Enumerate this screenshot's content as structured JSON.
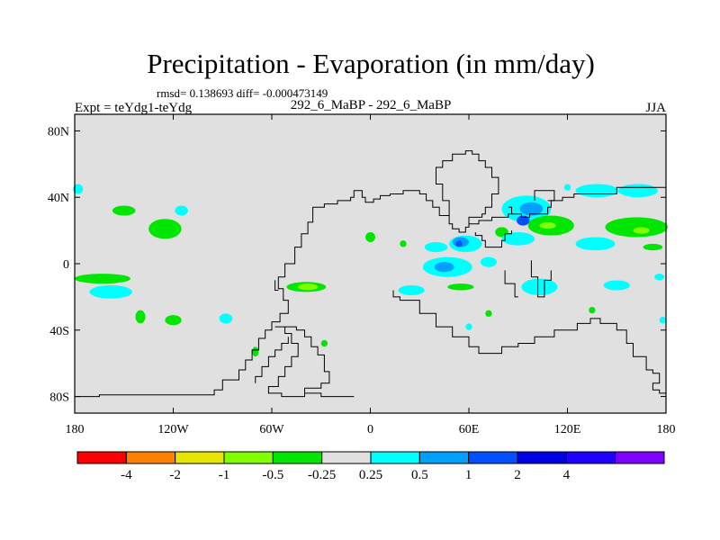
{
  "chart_data": {
    "type": "heatmap",
    "title": "Precipitation - Evaporation (in mm/day)",
    "stats": "rmsd= 0.138693 diff= -0.000473149",
    "left_label": "Expt = teYdg1-teYdg",
    "center_label": "292_6_MaBP - 292_6_MaBP",
    "right_label": "JJA",
    "x_ticks": [
      {
        "v": -180,
        "label": "180"
      },
      {
        "v": -120,
        "label": "120W"
      },
      {
        "v": -60,
        "label": "60W"
      },
      {
        "v": 0,
        "label": "0"
      },
      {
        "v": 60,
        "label": "60E"
      },
      {
        "v": 120,
        "label": "120E"
      },
      {
        "v": 180,
        "label": "180"
      }
    ],
    "y_ticks": [
      {
        "v": 80,
        "label": "80N"
      },
      {
        "v": 40,
        "label": "40N"
      },
      {
        "v": 0,
        "label": "0"
      },
      {
        "v": -40,
        "label": "40S"
      },
      {
        "v": -80,
        "label": "80S"
      }
    ],
    "xlim": [
      -180,
      180
    ],
    "ylim": [
      -90,
      90
    ],
    "colorbar": {
      "colors": [
        "#ff0000",
        "#ff8000",
        "#e6e600",
        "#80ff00",
        "#00e600",
        "#e0e0e0",
        "#00ffff",
        "#00a0ff",
        "#0050ff",
        "#0000e6",
        "#2000ff",
        "#8000ff"
      ],
      "labels": [
        "-4",
        "-2",
        "-1",
        "-0.5",
        "-0.25",
        "0.25",
        "0.5",
        "1",
        "2",
        "4"
      ]
    },
    "neutral_color": "#e0e0e0",
    "blobs": [
      {
        "lon": -178,
        "lat": 45,
        "rlon": 3,
        "rlat": 3,
        "color": "#00ffff"
      },
      {
        "lon": -150,
        "lat": 32,
        "rlon": 7,
        "rlat": 3,
        "color": "#00e600"
      },
      {
        "lon": -115,
        "lat": 32,
        "rlon": 4,
        "rlat": 3,
        "color": "#00ffff"
      },
      {
        "lon": -125,
        "lat": 21,
        "rlon": 10,
        "rlat": 6,
        "color": "#00e600"
      },
      {
        "lon": -163,
        "lat": -9,
        "rlon": 17,
        "rlat": 3,
        "color": "#00e600"
      },
      {
        "lon": -158,
        "lat": -17,
        "rlon": 13,
        "rlat": 4,
        "color": "#00ffff"
      },
      {
        "lon": -140,
        "lat": -32,
        "rlon": 3,
        "rlat": 4,
        "color": "#00e600"
      },
      {
        "lon": -120,
        "lat": -34,
        "rlon": 5,
        "rlat": 3,
        "color": "#00e600"
      },
      {
        "lon": -88,
        "lat": -33,
        "rlon": 4,
        "rlat": 3,
        "color": "#00ffff"
      },
      {
        "lon": -39,
        "lat": -14,
        "rlon": 12,
        "rlat": 3,
        "color": "#00e600"
      },
      {
        "lon": -38,
        "lat": -14,
        "rlon": 6,
        "rlat": 2,
        "color": "#80ff00"
      },
      {
        "lon": -70,
        "lat": -53,
        "rlon": 2,
        "rlat": 3,
        "color": "#00e600"
      },
      {
        "lon": -28,
        "lat": -48,
        "rlon": 2,
        "rlat": 2,
        "color": "#00e600"
      },
      {
        "lon": 0,
        "lat": 16,
        "rlon": 3,
        "rlat": 3,
        "color": "#00e600"
      },
      {
        "lon": 20,
        "lat": 12,
        "rlon": 2,
        "rlat": 2,
        "color": "#00e600"
      },
      {
        "lon": 40,
        "lat": 10,
        "rlon": 7,
        "rlat": 3,
        "color": "#00ffff"
      },
      {
        "lon": 58,
        "lat": 12,
        "rlon": 10,
        "rlat": 5,
        "color": "#00ffff"
      },
      {
        "lon": 55,
        "lat": 13,
        "rlon": 5,
        "rlat": 3,
        "color": "#00a0ff"
      },
      {
        "lon": 54,
        "lat": 12,
        "rlon": 2,
        "rlat": 2,
        "color": "#0050ff"
      },
      {
        "lon": 47,
        "lat": -2,
        "rlon": 15,
        "rlat": 6,
        "color": "#00ffff"
      },
      {
        "lon": 45,
        "lat": -2,
        "rlon": 6,
        "rlat": 3,
        "color": "#00a0ff"
      },
      {
        "lon": 25,
        "lat": -16,
        "rlon": 8,
        "rlat": 3,
        "color": "#00ffff"
      },
      {
        "lon": 55,
        "lat": -14,
        "rlon": 8,
        "rlat": 2,
        "color": "#00e600"
      },
      {
        "lon": 72,
        "lat": 1,
        "rlon": 5,
        "rlat": 3,
        "color": "#00ffff"
      },
      {
        "lon": 80,
        "lat": 19,
        "rlon": 4,
        "rlat": 3,
        "color": "#00e600"
      },
      {
        "lon": 95,
        "lat": 33,
        "rlon": 15,
        "rlat": 8,
        "color": "#00ffff"
      },
      {
        "lon": 98,
        "lat": 33,
        "rlon": 7,
        "rlat": 4,
        "color": "#00a0ff"
      },
      {
        "lon": 93,
        "lat": 26,
        "rlon": 4,
        "rlat": 3,
        "color": "#0050ff"
      },
      {
        "lon": 110,
        "lat": 23,
        "rlon": 14,
        "rlat": 6,
        "color": "#00e600"
      },
      {
        "lon": 108,
        "lat": 23,
        "rlon": 5,
        "rlat": 2,
        "color": "#80ff00"
      },
      {
        "lon": 90,
        "lat": 15,
        "rlon": 10,
        "rlat": 4,
        "color": "#00ffff"
      },
      {
        "lon": 137,
        "lat": 12,
        "rlon": 12,
        "rlat": 4,
        "color": "#00ffff"
      },
      {
        "lon": 138,
        "lat": 44,
        "rlon": 13,
        "rlat": 4,
        "color": "#00ffff"
      },
      {
        "lon": 163,
        "lat": 44,
        "rlon": 12,
        "rlat": 4,
        "color": "#00ffff"
      },
      {
        "lon": 120,
        "lat": 46,
        "rlon": 2,
        "rlat": 2,
        "color": "#00ffff"
      },
      {
        "lon": 162,
        "lat": 22,
        "rlon": 19,
        "rlat": 6,
        "color": "#00e600"
      },
      {
        "lon": 165,
        "lat": 20,
        "rlon": 5,
        "rlat": 2,
        "color": "#80ff00"
      },
      {
        "lon": 172,
        "lat": 10,
        "rlon": 6,
        "rlat": 2,
        "color": "#00e600"
      },
      {
        "lon": 103,
        "lat": -14,
        "rlon": 11,
        "rlat": 5,
        "color": "#00ffff"
      },
      {
        "lon": 150,
        "lat": -13,
        "rlon": 8,
        "rlat": 3,
        "color": "#00ffff"
      },
      {
        "lon": 176,
        "lat": -8,
        "rlon": 3,
        "rlat": 2,
        "color": "#00ffff"
      },
      {
        "lon": 135,
        "lat": -28,
        "rlon": 2,
        "rlat": 2,
        "color": "#00e600"
      },
      {
        "lon": 178,
        "lat": -34,
        "rlon": 2,
        "rlat": 2,
        "color": "#00ffff"
      },
      {
        "lon": 60,
        "lat": -38,
        "rlon": 2,
        "rlat": 2,
        "color": "#00ffff"
      },
      {
        "lon": 72,
        "lat": -30,
        "rlon": 2,
        "rlat": 2,
        "color": "#00e600"
      }
    ],
    "coastlines": [
      [
        [
          -180,
          -80
        ],
        [
          -165,
          -80
        ],
        [
          -165,
          -79
        ],
        [
          -95,
          -79
        ],
        [
          -95,
          -76
        ],
        [
          -90,
          -76
        ],
        [
          -90,
          -70
        ],
        [
          -80,
          -70
        ],
        [
          -80,
          -64
        ],
        [
          -76,
          -64
        ],
        [
          -76,
          -58
        ],
        [
          -72,
          -58
        ],
        [
          -72,
          -52
        ],
        [
          -68,
          -52
        ],
        [
          -68,
          -45
        ],
        [
          -64,
          -45
        ],
        [
          -64,
          -40
        ],
        [
          -60,
          -40
        ],
        [
          -60,
          -35
        ],
        [
          -55,
          -35
        ],
        [
          -55,
          -30
        ],
        [
          -50,
          -30
        ],
        [
          -50,
          -22
        ],
        [
          -53,
          -22
        ],
        [
          -53,
          -15
        ],
        [
          -56,
          -15
        ],
        [
          -56,
          -8
        ],
        [
          -52,
          -8
        ],
        [
          -52,
          0
        ],
        [
          -46,
          0
        ],
        [
          -46,
          10
        ],
        [
          -42,
          10
        ],
        [
          -42,
          18
        ],
        [
          -38,
          18
        ],
        [
          -38,
          25
        ],
        [
          -35,
          25
        ],
        [
          -35,
          34
        ],
        [
          -28,
          34
        ],
        [
          -28,
          36
        ],
        [
          -20,
          36
        ],
        [
          -20,
          38
        ],
        [
          -12,
          38
        ],
        [
          -12,
          40
        ],
        [
          -10,
          40
        ],
        [
          -10,
          44
        ],
        [
          -5,
          44
        ],
        [
          -5,
          40
        ],
        [
          -3,
          40
        ],
        [
          -3,
          37
        ],
        [
          2,
          37
        ],
        [
          2,
          39
        ],
        [
          6,
          39
        ],
        [
          6,
          41
        ],
        [
          12,
          41
        ],
        [
          12,
          42
        ],
        [
          20,
          42
        ],
        [
          20,
          44
        ],
        [
          30,
          44
        ],
        [
          30,
          42
        ],
        [
          34,
          42
        ],
        [
          34,
          38
        ],
        [
          38,
          38
        ],
        [
          38,
          34
        ],
        [
          42,
          34
        ],
        [
          42,
          29
        ],
        [
          48,
          29
        ],
        [
          48,
          24
        ],
        [
          50,
          24
        ],
        [
          50,
          21
        ],
        [
          54,
          21
        ],
        [
          54,
          19
        ],
        [
          58,
          19
        ],
        [
          58,
          22
        ],
        [
          60,
          22
        ],
        [
          60,
          24
        ],
        [
          66,
          24
        ],
        [
          66,
          26
        ],
        [
          74,
          26
        ],
        [
          74,
          28
        ],
        [
          84,
          28
        ],
        [
          84,
          30
        ],
        [
          92,
          30
        ],
        [
          92,
          28
        ],
        [
          97,
          28
        ],
        [
          97,
          30
        ],
        [
          108,
          30
        ],
        [
          108,
          34
        ],
        [
          110,
          34
        ],
        [
          110,
          38
        ],
        [
          117,
          38
        ],
        [
          117,
          40
        ],
        [
          124,
          40
        ],
        [
          124,
          42
        ],
        [
          150,
          42
        ],
        [
          150,
          46
        ],
        [
          180,
          46
        ]
      ],
      [
        [
          -180,
          -80
        ],
        [
          -180,
          -83
        ]
      ],
      [
        [
          48,
          29
        ],
        [
          48,
          38
        ],
        [
          44,
          38
        ],
        [
          44,
          48
        ],
        [
          40,
          48
        ],
        [
          40,
          58
        ],
        [
          44,
          58
        ],
        [
          44,
          62
        ],
        [
          50,
          62
        ],
        [
          50,
          66
        ],
        [
          58,
          66
        ],
        [
          58,
          68
        ],
        [
          62,
          68
        ],
        [
          62,
          66
        ],
        [
          66,
          66
        ],
        [
          66,
          62
        ],
        [
          70,
          62
        ],
        [
          70,
          58
        ],
        [
          74,
          58
        ],
        [
          74,
          52
        ],
        [
          78,
          52
        ],
        [
          78,
          42
        ],
        [
          74,
          42
        ],
        [
          74,
          34
        ],
        [
          70,
          34
        ],
        [
          70,
          30
        ],
        [
          68,
          30
        ],
        [
          68,
          28
        ],
        [
          60,
          28
        ],
        [
          60,
          24
        ]
      ],
      [
        [
          -58,
          -38
        ],
        [
          -52,
          -38
        ],
        [
          -52,
          -42
        ],
        [
          -48,
          -42
        ],
        [
          -48,
          -48
        ],
        [
          -44,
          -48
        ],
        [
          -44,
          -56
        ],
        [
          -48,
          -56
        ],
        [
          -48,
          -62
        ],
        [
          -52,
          -62
        ],
        [
          -52,
          -68
        ],
        [
          -56,
          -68
        ],
        [
          -56,
          -74
        ],
        [
          -62,
          -74
        ],
        [
          -62,
          -78
        ],
        [
          -54,
          -78
        ],
        [
          -54,
          -80
        ],
        [
          -40,
          -80
        ],
        [
          -40,
          -75
        ],
        [
          -30,
          -75
        ],
        [
          -30,
          -72
        ],
        [
          -25,
          -72
        ],
        [
          -25,
          -65
        ],
        [
          -28,
          -65
        ],
        [
          -28,
          -55
        ],
        [
          -32,
          -55
        ],
        [
          -32,
          -50
        ],
        [
          -36,
          -50
        ],
        [
          -36,
          -44
        ],
        [
          -40,
          -44
        ],
        [
          -40,
          -40
        ],
        [
          -45,
          -40
        ],
        [
          -45,
          -38
        ],
        [
          -52,
          -38
        ]
      ],
      [
        [
          -70,
          -72
        ],
        [
          -70,
          -68
        ],
        [
          -66,
          -68
        ],
        [
          -66,
          -62
        ],
        [
          -62,
          -62
        ],
        [
          -62,
          -56
        ],
        [
          -58,
          -56
        ],
        [
          -58,
          -52
        ],
        [
          -54,
          -52
        ],
        [
          -54,
          -48
        ],
        [
          -50,
          -48
        ],
        [
          -50,
          -44
        ]
      ],
      [
        [
          -40,
          -78
        ],
        [
          -30,
          -78
        ],
        [
          -30,
          -80
        ],
        [
          -10,
          -80
        ]
      ],
      [
        [
          -58,
          -10
        ],
        [
          -58,
          -16
        ],
        [
          -56,
          -16
        ]
      ],
      [
        [
          14,
          -16
        ],
        [
          14,
          -20
        ],
        [
          18,
          -20
        ],
        [
          18,
          -22
        ],
        [
          30,
          -22
        ],
        [
          30,
          -30
        ],
        [
          40,
          -30
        ],
        [
          40,
          -38
        ],
        [
          50,
          -38
        ],
        [
          50,
          -44
        ],
        [
          60,
          -44
        ],
        [
          60,
          -50
        ],
        [
          66,
          -50
        ],
        [
          66,
          -54
        ],
        [
          80,
          -54
        ],
        [
          80,
          -50
        ],
        [
          90,
          -50
        ],
        [
          90,
          -48
        ],
        [
          100,
          -48
        ],
        [
          100,
          -44
        ],
        [
          112,
          -44
        ],
        [
          112,
          -40
        ],
        [
          126,
          -40
        ],
        [
          126,
          -36
        ],
        [
          134,
          -36
        ],
        [
          134,
          -33
        ],
        [
          140,
          -33
        ],
        [
          140,
          -36
        ],
        [
          150,
          -36
        ],
        [
          150,
          -40
        ],
        [
          156,
          -40
        ],
        [
          156,
          -48
        ],
        [
          160,
          -48
        ],
        [
          160,
          -56
        ],
        [
          168,
          -56
        ],
        [
          168,
          -64
        ],
        [
          172,
          -64
        ],
        [
          172,
          -66
        ],
        [
          176,
          -66
        ],
        [
          176,
          -72
        ],
        [
          172,
          -72
        ],
        [
          172,
          -76
        ],
        [
          176,
          -76
        ],
        [
          176,
          -78
        ],
        [
          180,
          -78
        ]
      ],
      [
        [
          86,
          20
        ],
        [
          86,
          18
        ],
        [
          82,
          18
        ],
        [
          82,
          14
        ],
        [
          80,
          14
        ],
        [
          80,
          10
        ],
        [
          70,
          10
        ],
        [
          70,
          14
        ],
        [
          68,
          14
        ],
        [
          68,
          17
        ],
        [
          64,
          17
        ],
        [
          64,
          19
        ]
      ],
      [
        [
          82,
          -4
        ],
        [
          82,
          -12
        ],
        [
          88,
          -12
        ],
        [
          88,
          -20
        ],
        [
          90,
          -20
        ]
      ],
      [
        [
          98,
          2
        ],
        [
          98,
          -8
        ],
        [
          102,
          -8
        ],
        [
          102,
          -20
        ],
        [
          106,
          -20
        ],
        [
          106,
          -10
        ],
        [
          110,
          -10
        ],
        [
          110,
          -4
        ]
      ],
      [
        [
          100,
          38
        ],
        [
          100,
          44
        ],
        [
          112,
          44
        ],
        [
          112,
          38
        ],
        [
          108,
          38
        ]
      ],
      [
        [
          86,
          30
        ],
        [
          86,
          34
        ],
        [
          84,
          34
        ]
      ]
    ]
  }
}
